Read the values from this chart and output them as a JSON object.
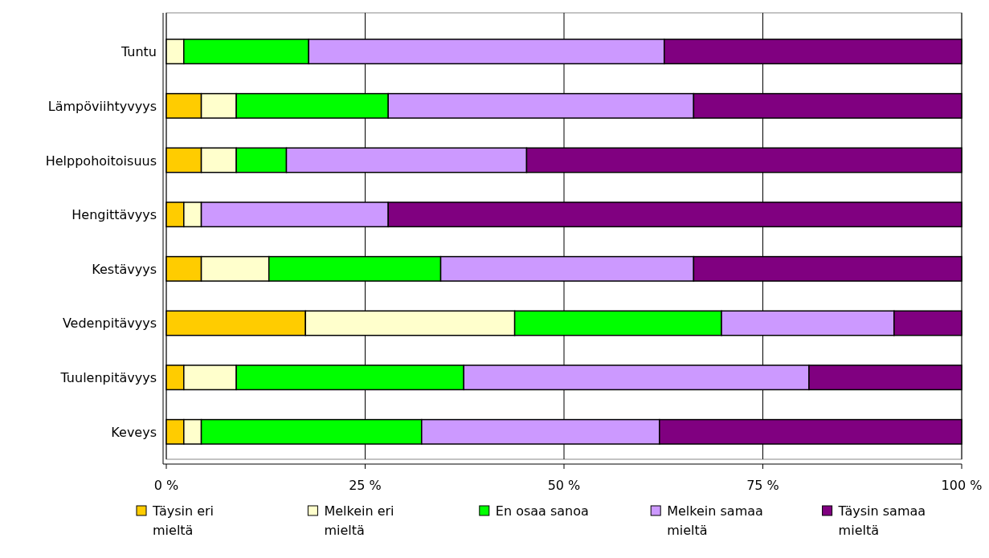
{
  "chart_data": {
    "type": "bar",
    "orientation": "horizontal",
    "stacked": true,
    "categories": [
      "Tuntu",
      "Lämpöviihtyvyys",
      "Helppohoitoisuus",
      "Hengittävyys",
      "Kestävyys",
      "Vedenpitävyys",
      "Tuulenpitävyys",
      "Keveys"
    ],
    "series": [
      {
        "name": "Täysin eri mieltä",
        "color": "#ffcc00",
        "values": [
          0,
          4.4,
          4.4,
          2.2,
          4.4,
          17.5,
          2.2,
          2.2
        ]
      },
      {
        "name": "Melkein eri mieltä",
        "color": "#ffffcc",
        "values": [
          2.2,
          4.4,
          4.4,
          2.2,
          8.5,
          26.3,
          6.6,
          2.2
        ]
      },
      {
        "name": "En osaa sanoa",
        "color": "#00ff00",
        "values": [
          15.7,
          19.1,
          6.3,
          0,
          21.6,
          26.0,
          28.6,
          27.7
        ]
      },
      {
        "name": "Melkein samaa mieltä",
        "color": "#cc99ff",
        "values": [
          44.7,
          38.4,
          30.2,
          23.5,
          31.8,
          21.7,
          43.4,
          29.9
        ]
      },
      {
        "name": "Täysin samaa mieltä",
        "color": "#800080",
        "values": [
          37.4,
          33.7,
          54.7,
          72.1,
          33.7,
          8.5,
          19.2,
          38.0
        ]
      }
    ],
    "xlim": [
      0,
      100
    ],
    "xticks": [
      {
        "value": 0,
        "label": "0 %"
      },
      {
        "value": 25,
        "label": "25 %"
      },
      {
        "value": 50,
        "label": "50 %"
      },
      {
        "value": 75,
        "label": "75 %"
      },
      {
        "value": 100,
        "label": "100 %"
      }
    ],
    "grid": "x",
    "legend": "bottom"
  }
}
